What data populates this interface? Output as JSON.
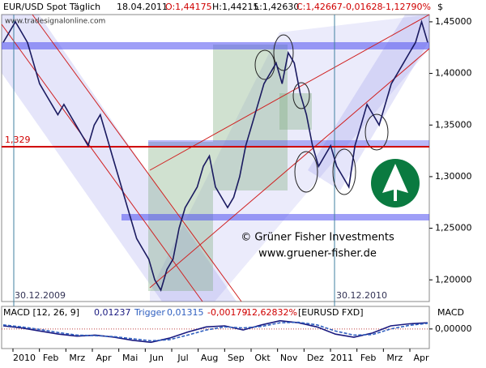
{
  "header": {
    "instrument": "EUR/USD Spot Täglich",
    "date": "18.04.2011",
    "open": "O:1,44175",
    "high": "H:1,44215",
    "low": "L:1,42630",
    "close": "C:1,42667",
    "change": "-0,01628",
    "change_pct": "-1,12790%",
    "source": "www.tradesignalonline.com",
    "currency": "$"
  },
  "annotations": {
    "level": "1,329",
    "date_left": "30.12.2009",
    "date_right": "30.12.2010",
    "copyright": "© Grüner Fisher Investments",
    "website": "www.gruener-fisher.de"
  },
  "x_labels": [
    "2010",
    "Feb",
    "Mrz",
    "Apr",
    "Mai",
    "Jun",
    "Jul",
    "Aug",
    "Sep",
    "Okt",
    "Nov",
    "Dez",
    "2011",
    "Feb",
    "Mrz",
    "Apr"
  ],
  "chart_data": [
    {
      "type": "line",
      "title": "EUR/USD",
      "color": "#1a1a60",
      "values": [
        1.43,
        1.44,
        1.45,
        1.44,
        1.43,
        1.41,
        1.39,
        1.38,
        1.37,
        1.36,
        1.37,
        1.36,
        1.35,
        1.34,
        1.33,
        1.35,
        1.36,
        1.34,
        1.32,
        1.3,
        1.28,
        1.26,
        1.24,
        1.23,
        1.22,
        1.2,
        1.19,
        1.21,
        1.22,
        1.25,
        1.27,
        1.28,
        1.29,
        1.31,
        1.32,
        1.29,
        1.28,
        1.27,
        1.28,
        1.3,
        1.33,
        1.35,
        1.37,
        1.39,
        1.4,
        1.41,
        1.39,
        1.42,
        1.41,
        1.38,
        1.36,
        1.33,
        1.31,
        1.32,
        1.33,
        1.31,
        1.3,
        1.29,
        1.33,
        1.35,
        1.37,
        1.36,
        1.35,
        1.37,
        1.39,
        1.4,
        1.41,
        1.42,
        1.43,
        1.45,
        1.43
      ],
      "level": 1.329,
      "ylim": [
        1.179,
        1.457
      ],
      "yticks": [
        {
          "value": 1.45,
          "label": "1,45000"
        },
        {
          "value": 1.4,
          "label": "1,40000"
        },
        {
          "value": 1.35,
          "label": "1,35000"
        },
        {
          "value": 1.3,
          "label": "1,30000"
        },
        {
          "value": 1.25,
          "label": "1,25000"
        },
        {
          "value": 1.2,
          "label": "1,20000"
        }
      ]
    },
    {
      "type": "line",
      "title": "MACD [12, 26, 9]",
      "macd_value": "0,01237",
      "trigger_label": "Trigger",
      "trigger_value": "0,01315",
      "diff": "-0,00179",
      "diff_pct": "-12,62832%",
      "symbol": "[EURUSD FXD]",
      "axis_label": "MACD",
      "series": [
        {
          "name": "MACD",
          "color": "#1a1a80",
          "values": [
            0.006,
            0.002,
            -0.004,
            -0.01,
            -0.014,
            -0.012,
            -0.016,
            -0.022,
            -0.026,
            -0.018,
            -0.006,
            0.004,
            0.006,
            -0.002,
            0.008,
            0.016,
            0.012,
            0.004,
            -0.01,
            -0.016,
            -0.008,
            0.006,
            0.01,
            0.012
          ]
        },
        {
          "name": "Trigger",
          "color": "#3060c0",
          "values": [
            0.008,
            0.004,
            -0.001,
            -0.007,
            -0.012,
            -0.013,
            -0.015,
            -0.019,
            -0.023,
            -0.021,
            -0.012,
            -0.002,
            0.004,
            0.002,
            0.005,
            0.012,
            0.013,
            0.008,
            -0.004,
            -0.012,
            -0.011,
            0.0,
            0.007,
            0.011
          ]
        }
      ],
      "ylim": [
        -0.035,
        0.025
      ],
      "yticks": [
        {
          "value": 0,
          "label": "0,00000"
        }
      ]
    }
  ]
}
